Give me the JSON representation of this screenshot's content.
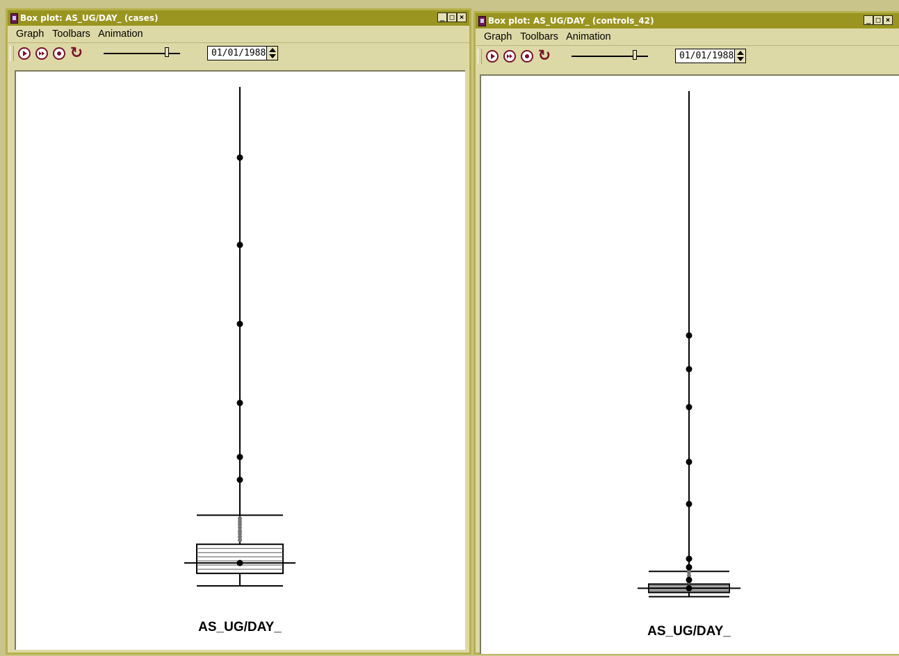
{
  "left_window": {
    "title": "Box plot: AS_UG/DAY_ (cases)",
    "menu": [
      "Graph",
      "Toolbars",
      "Animation"
    ],
    "toolbar": {
      "date_value": "01/01/1988"
    },
    "buttons": {
      "minimize": "_",
      "maximize": "□",
      "close": "×"
    }
  },
  "right_window": {
    "title": "Box plot: AS_UG/DAY_ (controls_42)",
    "menu": [
      "Graph",
      "Toolbars",
      "Animation"
    ],
    "toolbar": {
      "date_value": "01/01/1988"
    },
    "buttons": {
      "minimize": "_",
      "maximize": "□",
      "close": "×"
    }
  },
  "colors": {
    "title_bar": "#9a9520",
    "window_bg": "#ddd9a6",
    "window_border": "#b6b04a",
    "control_accent": "#7a1028",
    "outlier": "#000000",
    "near_outlier": "#777777"
  },
  "icons": [
    "app-icon",
    "play-icon",
    "fast-forward-icon",
    "stop-icon",
    "reset-icon",
    "slider-thumb",
    "spin-icon"
  ],
  "chart_data": [
    {
      "type": "box",
      "xlabel": "AS_UG/DAY_",
      "box": {
        "q1": 0.3,
        "median": 0.55,
        "q3": 1.0,
        "lower_whisker": 0.0,
        "upper_whisker": 1.7,
        "mean": 0.55
      },
      "outliers": [
        2.55,
        3.1,
        4.4,
        6.3,
        8.2,
        10.3
      ],
      "near_outliers": [
        1.25,
        1.32,
        1.4,
        1.48,
        1.55,
        1.62,
        1.1,
        1.18
      ],
      "ylim": [
        -0.5,
        12
      ]
    },
    {
      "type": "box",
      "xlabel": "AS_UG/DAY_",
      "box": {
        "q1": 0.1,
        "median": 0.2,
        "q3": 0.3,
        "lower_whisker": 0.0,
        "upper_whisker": 0.6,
        "mean": 0.2
      },
      "outliers": [
        0.4,
        0.7,
        0.9,
        2.2,
        3.2,
        4.5,
        5.4,
        6.2
      ],
      "near_outliers": [
        0.35,
        0.42,
        0.5,
        0.58,
        0.65
      ],
      "ylim": [
        -0.5,
        12
      ]
    }
  ]
}
